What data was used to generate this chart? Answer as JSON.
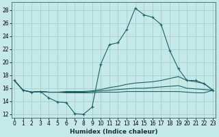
{
  "title": "",
  "xlabel": "Humidex (Indice chaleur)",
  "ylabel": "",
  "bg_color": "#c5e8e8",
  "grid_color": "#b0d0d0",
  "line_color": "#1a6060",
  "x_ticks": [
    0,
    1,
    2,
    3,
    4,
    5,
    6,
    7,
    8,
    9,
    10,
    11,
    12,
    13,
    14,
    15,
    16,
    17,
    18,
    19,
    20,
    21,
    22,
    23
  ],
  "y_ticks": [
    12,
    14,
    16,
    18,
    20,
    22,
    24,
    26,
    28
  ],
  "xlim": [
    -0.3,
    23.3
  ],
  "ylim": [
    11.5,
    29.2
  ],
  "lines": [
    {
      "x": [
        0,
        1,
        2,
        3,
        4,
        5,
        6,
        7,
        8,
        9,
        10,
        11,
        12,
        13,
        14,
        15,
        16,
        17,
        18,
        19,
        20,
        21,
        22,
        23
      ],
      "y": [
        17.2,
        15.7,
        15.4,
        15.5,
        14.5,
        13.9,
        13.8,
        12.1,
        12.0,
        13.1,
        19.7,
        22.7,
        23.0,
        25.0,
        28.3,
        27.3,
        26.9,
        25.8,
        21.8,
        19.0,
        17.2,
        17.2,
        16.7,
        15.7
      ],
      "marker": true
    },
    {
      "x": [
        0,
        1,
        2,
        3,
        4,
        5,
        6,
        7,
        8,
        9,
        10,
        11,
        12,
        13,
        14,
        15,
        16,
        17,
        18,
        19,
        20,
        21,
        22,
        23
      ],
      "y": [
        17.2,
        15.7,
        15.4,
        15.5,
        15.4,
        15.4,
        15.5,
        15.5,
        15.5,
        15.6,
        15.8,
        16.1,
        16.3,
        16.6,
        16.8,
        16.9,
        17.0,
        17.2,
        17.5,
        17.8,
        17.2,
        17.0,
        16.7,
        15.7
      ],
      "marker": false
    },
    {
      "x": [
        0,
        1,
        2,
        3,
        4,
        5,
        6,
        7,
        8,
        9,
        10,
        11,
        12,
        13,
        14,
        15,
        16,
        17,
        18,
        19,
        20,
        21,
        22,
        23
      ],
      "y": [
        17.2,
        15.7,
        15.4,
        15.5,
        15.4,
        15.4,
        15.4,
        15.4,
        15.4,
        15.5,
        15.6,
        15.7,
        15.8,
        15.9,
        16.0,
        16.0,
        16.1,
        16.2,
        16.3,
        16.4,
        16.0,
        15.9,
        15.8,
        15.7
      ],
      "marker": false
    },
    {
      "x": [
        0,
        1,
        2,
        3,
        4,
        5,
        6,
        7,
        8,
        9,
        10,
        11,
        12,
        13,
        14,
        15,
        16,
        17,
        18,
        19,
        20,
        21,
        22,
        23
      ],
      "y": [
        17.2,
        15.7,
        15.4,
        15.5,
        15.4,
        15.4,
        15.3,
        15.3,
        15.3,
        15.3,
        15.4,
        15.4,
        15.4,
        15.5,
        15.5,
        15.5,
        15.5,
        15.5,
        15.5,
        15.5,
        15.4,
        15.3,
        15.3,
        15.7
      ],
      "marker": false
    }
  ]
}
